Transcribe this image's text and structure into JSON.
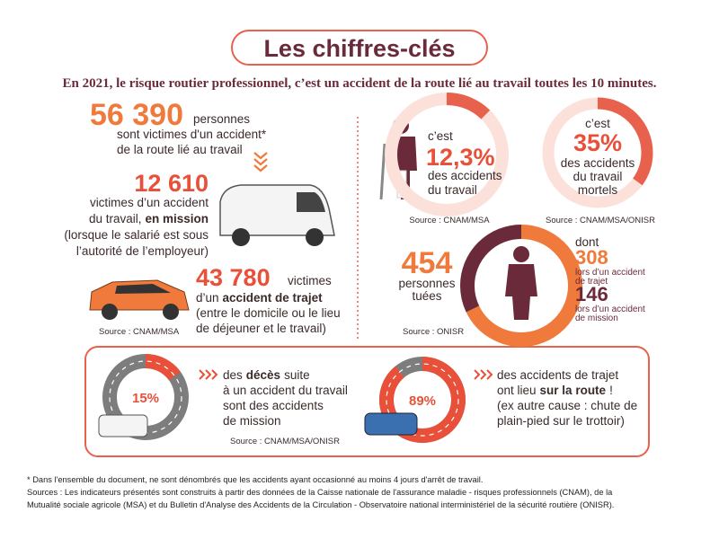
{
  "header": {
    "title": "Les chiffres-clés",
    "subtitle": "En 2021, le risque routier professionnel, c’est un accident de la route lié au travail toutes les 10 minutes."
  },
  "total": {
    "figure": "56 390",
    "lines": [
      "personnes",
      "sont victimes d'un accident*",
      "de la route lié au travail"
    ]
  },
  "mission": {
    "figure": "12 610",
    "lines": [
      [
        "victimes d’un accident"
      ],
      [
        "du travail,",
        "en mission"
      ],
      [
        "(lorsque le salarié est sous"
      ],
      [
        "l’autorité de l’employeur)"
      ]
    ]
  },
  "trajet": {
    "figure": "43 780",
    "lines": [
      [
        "victimes"
      ],
      [
        "d’un",
        "accident de trajet"
      ],
      [
        "(entre le domicile ou le lieu"
      ],
      [
        "de déjeuner et le travail)"
      ]
    ],
    "source": "Source : CNAM/MSA"
  },
  "share_work": {
    "intro": "c’est",
    "figure": {
      "value": 12.3,
      "label": "12,3%"
    },
    "lines": [
      "des accidents",
      "du travail"
    ],
    "source": "Source : CNAM/MSA"
  },
  "share_fatal": {
    "intro": "c’est",
    "figure": {
      "value": 35,
      "label": "35%"
    },
    "lines": [
      "des accidents",
      "du travail",
      "mortels"
    ],
    "source": "Source : CNAM/MSA/ONISR"
  },
  "deaths": {
    "figure": 454,
    "lines": [
      "personnes",
      "tuées"
    ],
    "intro": "dont",
    "parts": [
      {
        "value": 308,
        "lines": [
          "lors d’un accident",
          "de trajet"
        ]
      },
      {
        "value": 146,
        "lines": [
          "lors d’un accident",
          "de mission"
        ]
      }
    ],
    "source": "Source : ONISR"
  },
  "mission_deaths": {
    "figure": {
      "value": 15,
      "label": "15%"
    },
    "lines": [
      [
        "des",
        "décès",
        "suite"
      ],
      [
        "à un accident du travail"
      ],
      [
        "sont des accidents"
      ],
      [
        "de mission"
      ]
    ],
    "source": "Source : CNAM/MSA/ONISR"
  },
  "road_share": {
    "figure": {
      "value": 89,
      "label": "89%"
    },
    "lines": [
      [
        "des accidents de trajet"
      ],
      [
        "ont lieu",
        "sur la route",
        "!"
      ],
      [
        "(ex autre cause : chute de"
      ],
      [
        "plain-pied sur le trottoir)"
      ]
    ]
  },
  "footnotes": [
    "* Dans l'ensemble du document, ne sont dénombrés que les accidents ayant occasionné au moins 4 jours d'arrêt de travail.",
    "Sources : Les indicateurs présentés sont construits à partir des données de la Caisse nationale de l'assurance maladie - risques professionnels (CNAM), de la",
    "Mutualité sociale agricole (MSA) et du Bulletin d'Analyse des Accidents de la Circulation - Observatoire national interministériel de la sécurité routière (ONISR)."
  ]
}
